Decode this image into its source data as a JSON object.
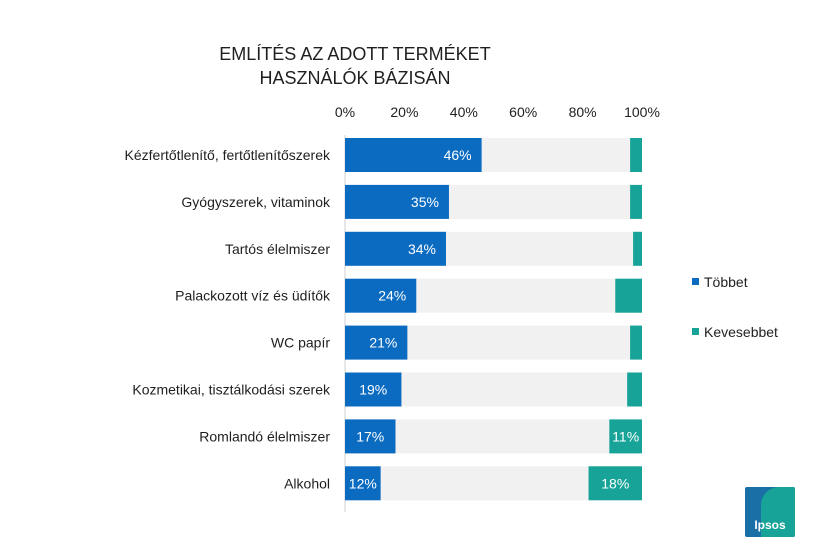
{
  "title_line1": "EMLÍTÉS AZ ADOTT TERMÉKET",
  "title_line2": "HASZNÁLÓK BÁZISÁN",
  "logo_text": "Ipsos",
  "colors": {
    "tobbet": "#0b6bc1",
    "kevesebbet": "#17a398",
    "rest": "#f1f1f1"
  },
  "chart_data": {
    "type": "bar",
    "orientation": "horizontal",
    "stacked": true,
    "categories": [
      "Kézfertőtlenítő, fertőtlenítőszerek",
      "Gyógyszerek, vitaminok",
      "Tartós élelmiszer",
      "Palackozott víz és üdítők",
      "WC papír",
      "Kozmetikai, tisztálkodási szerek",
      "Romlandó élelmiszer",
      "Alkohol"
    ],
    "series": [
      {
        "name": "Többet",
        "values": [
          46,
          35,
          34,
          24,
          21,
          19,
          17,
          12
        ],
        "labels": [
          "46%",
          "35%",
          "34%",
          "24%",
          "21%",
          "19%",
          "17%",
          "12%"
        ]
      },
      {
        "name": "Kevesebbet",
        "values": [
          4,
          4,
          3,
          9,
          4,
          5,
          11,
          18
        ],
        "labels": [
          "",
          "",
          "",
          "",
          "",
          "",
          "11%",
          "18%"
        ]
      }
    ],
    "xticks": [
      "0%",
      "20%",
      "40%",
      "60%",
      "80%",
      "100%"
    ],
    "xlim": [
      0,
      100
    ],
    "legend": "right"
  }
}
